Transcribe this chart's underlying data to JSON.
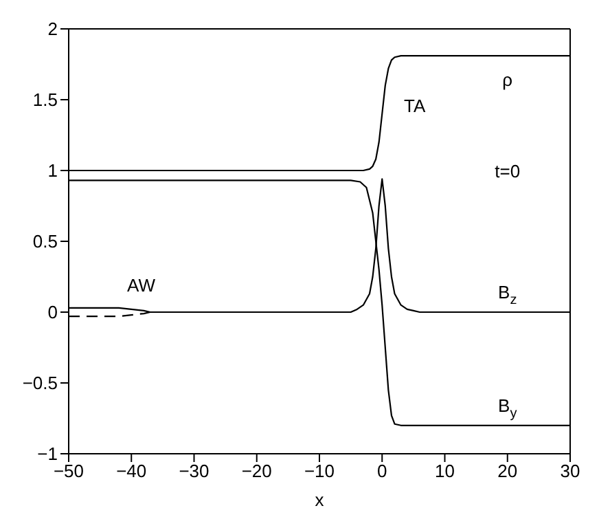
{
  "chart_data": {
    "type": "line",
    "xlabel": "x",
    "xlim": [
      -50,
      30
    ],
    "xticks": [
      -50,
      -40,
      -30,
      -20,
      -10,
      0,
      10,
      20,
      30
    ],
    "ylim": [
      -1,
      2
    ],
    "yticks": [
      -1,
      -0.5,
      0,
      0.5,
      1,
      1.5,
      2
    ],
    "marker": "none",
    "series": [
      {
        "name": "ρ",
        "color": "#000000",
        "line_style": "solid",
        "x": [
          -50,
          -3,
          -2,
          -1.5,
          -1,
          -0.5,
          0,
          0.5,
          1,
          1.5,
          2,
          3,
          30
        ],
        "values": [
          1,
          1,
          1.01,
          1.03,
          1.08,
          1.2,
          1.4,
          1.6,
          1.72,
          1.78,
          1.8,
          1.81,
          1.81
        ]
      },
      {
        "name": "B$_{z}$",
        "color": "#000000",
        "line_style": "solid",
        "x": [
          -50,
          -42,
          -40,
          -38,
          -37,
          -5,
          -4,
          -3,
          -2,
          -1.5,
          -1,
          -0.5,
          0,
          0.5,
          1,
          1.5,
          2,
          3,
          4,
          5,
          6,
          30
        ],
        "values": [
          0.03,
          0.03,
          0.02,
          0.01,
          0,
          0,
          0.02,
          0.05,
          0.13,
          0.25,
          0.45,
          0.75,
          0.94,
          0.75,
          0.45,
          0.25,
          0.13,
          0.05,
          0.02,
          0.01,
          0,
          0
        ]
      },
      {
        "name": "B$_{y}$",
        "color": "#000000",
        "line_style": "solid",
        "x": [
          -50,
          -5,
          -3.5,
          -2.5,
          -1.5,
          -1,
          -0.5,
          0,
          0.5,
          1,
          1.5,
          2,
          3,
          30
        ],
        "values": [
          0.93,
          0.93,
          0.92,
          0.88,
          0.7,
          0.5,
          0.3,
          0.05,
          -0.25,
          -0.55,
          -0.73,
          -0.79,
          -0.8,
          -0.8
        ]
      },
      {
        "color": "#000000",
        "line_style": "dashed",
        "x": [
          -50,
          -42,
          -40,
          -38,
          -37
        ],
        "values": [
          -0.03,
          -0.03,
          -0.02,
          -0.01,
          0
        ]
      }
    ],
    "annotations": [
      "TA",
      {
        "text": "AW",
        "x": -42,
        "y": 0.03
      },
      "t=0"
    ]
  }
}
